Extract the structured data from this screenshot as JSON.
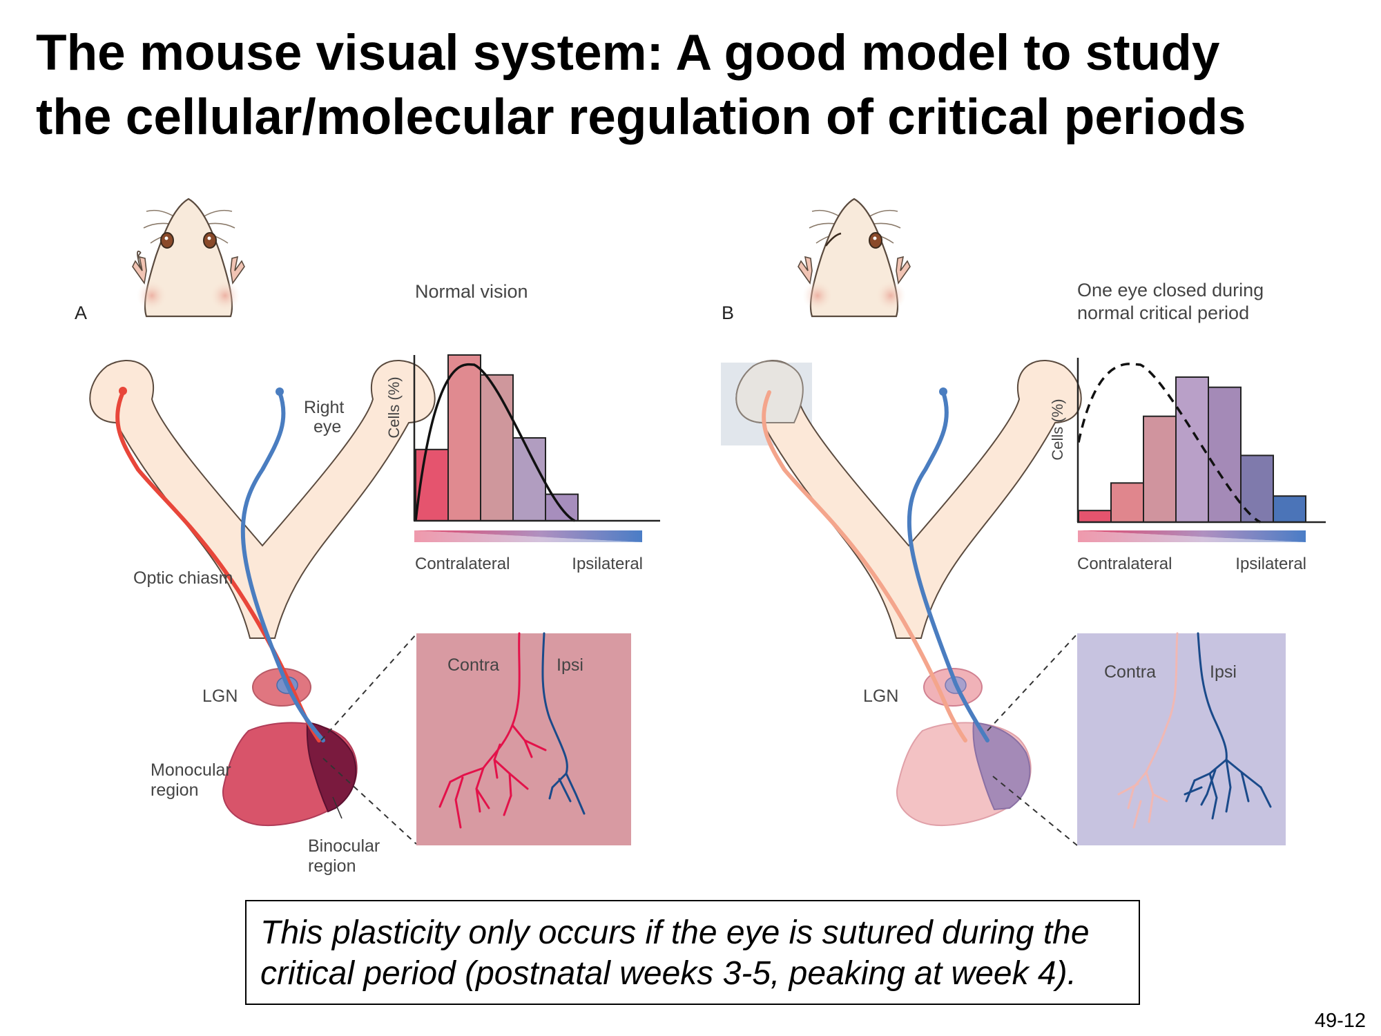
{
  "title": {
    "line1": "The mouse visual system: A good model to study",
    "line2": "the cellular/molecular regulation of critical periods"
  },
  "panel_a": {
    "letter": "A",
    "condition": "Normal vision",
    "right_eye_line1": "Right",
    "right_eye_line2": "eye",
    "optic_chiasm": "Optic chiasm",
    "lgn": "LGN",
    "monocular_line1": "Monocular",
    "monocular_line2": "region",
    "binocular_line1": "Binocular",
    "binocular_line2": "region",
    "inset_contra": "Contra",
    "inset_ipsi": "Ipsi"
  },
  "panel_b": {
    "letter": "B",
    "condition_line1": "One eye closed during",
    "condition_line2": "normal critical period",
    "lgn": "LGN",
    "inset_contra": "Contra",
    "inset_ipsi": "Ipsi"
  },
  "chart_data": [
    {
      "type": "bar",
      "title": "Normal vision",
      "xlabel_left": "Contralateral",
      "xlabel_right": "Ipsilateral",
      "ylabel": "Cells (%)",
      "values": [
        0.43,
        1.0,
        0.88,
        0.5,
        0.16
      ],
      "bar_colors": [
        "#e5546e",
        "#e08a90",
        "#cf979c",
        "#b19dc0",
        "#a78ebd"
      ],
      "curve_style": "solid",
      "curve_peak_bin": 1.8
    },
    {
      "type": "bar",
      "title": "One eye closed during normal critical period",
      "xlabel_left": "Contralateral",
      "xlabel_right": "Ipsilateral",
      "ylabel": "Cells (%)",
      "values": [
        0.08,
        0.27,
        0.73,
        1.0,
        0.93,
        0.46,
        0.18
      ],
      "bar_colors": [
        "#e5546e",
        "#e0868d",
        "#d0949e",
        "#b9a0c8",
        "#a48ab7",
        "#7f7aac",
        "#4b74b8"
      ],
      "curve_style": "dashed",
      "curve_peak_bin": 1.9
    }
  ],
  "footnote": {
    "line1": "This plasticity only occurs if the eye is sutured during the",
    "line2": "critical period (postnatal weeks 3-5, peaking at week 4)."
  },
  "slide_number": "49-12",
  "colors": {
    "contra": "#e8463a",
    "ipsi": "#4a7dc0",
    "contra_faded": "#f2a99a",
    "inset_a_bg": "#d89aa2",
    "inset_b_bg": "#c7c3e0",
    "pathway": "#fce8d8"
  }
}
